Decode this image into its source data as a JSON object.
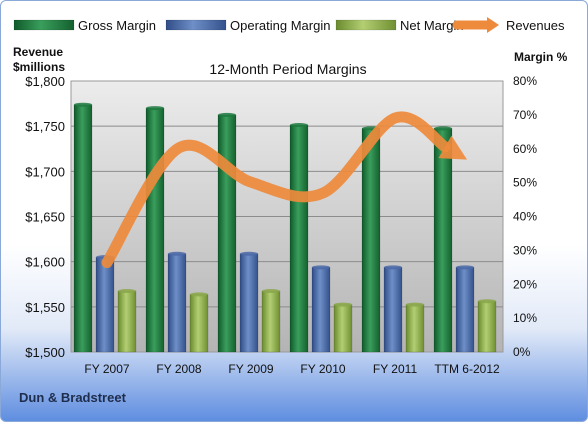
{
  "chart_data": {
    "type": "bar",
    "title": "12-Month Period Margins",
    "categories": [
      "FY 2007",
      "FY 2008",
      "FY 2009",
      "FY 2010",
      "FY 2011",
      "TTM 6-2012"
    ],
    "series": [
      {
        "name": "Gross Margin",
        "axis": "right",
        "unit": "%",
        "color": "#1e7a40",
        "values": [
          73,
          72,
          70,
          67,
          66,
          66
        ]
      },
      {
        "name": "Operating Margin",
        "axis": "right",
        "unit": "%",
        "color": "#4b6aa8",
        "values": [
          28,
          29,
          29,
          25,
          25,
          25
        ]
      },
      {
        "name": "Net Margin",
        "axis": "right",
        "unit": "%",
        "color": "#8aa84a",
        "values": [
          18,
          17,
          18,
          14,
          14,
          15
        ]
      },
      {
        "name": "Revenues",
        "axis": "left",
        "unit": "$millions",
        "color": "#ee8a3c",
        "type": "line",
        "values": [
          1599,
          1726,
          1688,
          1676,
          1759,
          1713
        ]
      }
    ],
    "y_left": {
      "label_line1": "Revenue",
      "label_line2": "$millions",
      "min": 1500,
      "max": 1800,
      "ticks": [
        "$1,500",
        "$1,550",
        "$1,600",
        "$1,650",
        "$1,700",
        "$1,750",
        "$1,800"
      ]
    },
    "y_right": {
      "label": "Margin %",
      "min": 0,
      "max": 80,
      "ticks": [
        "0%",
        "10%",
        "20%",
        "30%",
        "40%",
        "50%",
        "60%",
        "70%",
        "80%"
      ]
    },
    "grid": true,
    "legend_position": "top"
  },
  "footer": {
    "company": "Dun & Bradstreet"
  }
}
